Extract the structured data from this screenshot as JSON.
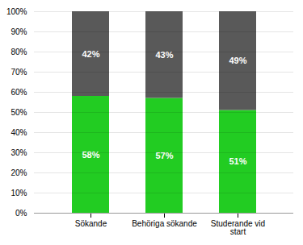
{
  "chart_data": {
    "type": "bar",
    "stacked": true,
    "categories": [
      "Sökande",
      "Behöriga sökande",
      "Studerande vid start"
    ],
    "series": [
      {
        "color": "#22cc22",
        "values": [
          58,
          57,
          51
        ],
        "value_labels": [
          "58%",
          "57%",
          "51%"
        ]
      },
      {
        "color": "#595959",
        "values": [
          42,
          43,
          49
        ],
        "value_labels": [
          "42%",
          "43%",
          "49%"
        ]
      }
    ],
    "ylim": [
      0,
      100
    ],
    "yticks": [
      {
        "value": 0,
        "label": "0%"
      },
      {
        "value": 10,
        "label": "10%"
      },
      {
        "value": 20,
        "label": "20%"
      },
      {
        "value": 30,
        "label": "30%"
      },
      {
        "value": 40,
        "label": "40%"
      },
      {
        "value": 50,
        "label": "50%"
      },
      {
        "value": 60,
        "label": "60%"
      },
      {
        "value": 70,
        "label": "70%"
      },
      {
        "value": 80,
        "label": "80%"
      },
      {
        "value": 90,
        "label": "90%"
      },
      {
        "value": 100,
        "label": "100%"
      }
    ],
    "grid": true,
    "data_labels": true
  }
}
